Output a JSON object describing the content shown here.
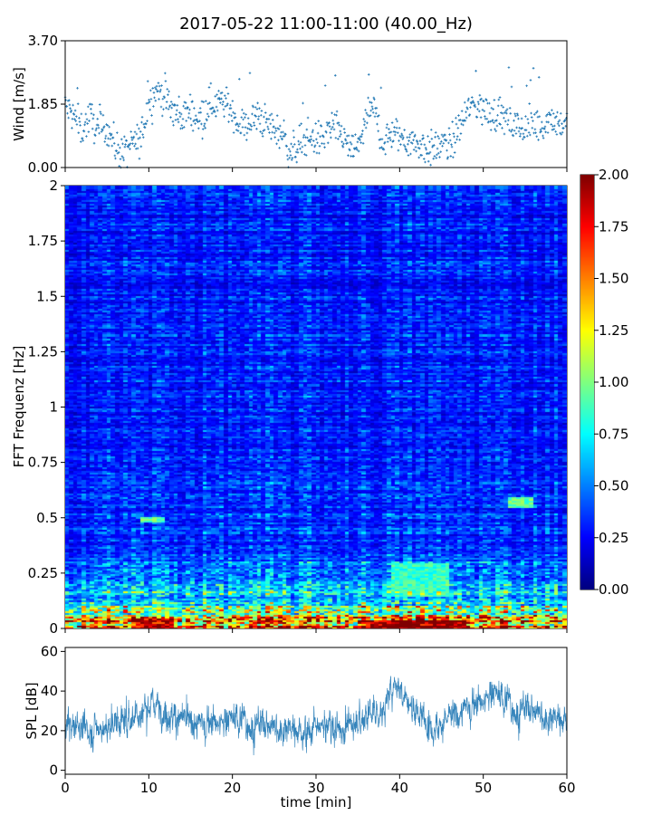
{
  "figure": {
    "title": "2017-05-22 11:00-11:00 (40.00_Hz)"
  },
  "chart_data": [
    {
      "id": "wind",
      "type": "scatter",
      "title": "",
      "xlabel": "",
      "ylabel": "Wind [m/s]",
      "xlim": [
        0,
        60
      ],
      "ylim": [
        0,
        3.7
      ],
      "yticks": [
        0.0,
        1.85,
        3.7
      ],
      "yticklabels": [
        "0.00",
        "1.85",
        "3.70"
      ],
      "xticks": [
        0,
        10,
        20,
        30,
        40,
        50,
        60
      ],
      "color": "#1f77b4",
      "marker": "plus",
      "trend": {
        "x": [
          0,
          1,
          2,
          3,
          4,
          5,
          6,
          7,
          8,
          9,
          10,
          11,
          12,
          13,
          14,
          15,
          16,
          17,
          18,
          19,
          20,
          21,
          22,
          23,
          24,
          25,
          26,
          27,
          28,
          29,
          30,
          31,
          32,
          33,
          34,
          35,
          36,
          37,
          38,
          39,
          40,
          41,
          42,
          43,
          44,
          45,
          46,
          47,
          48,
          49,
          50,
          51,
          52,
          53,
          54,
          55,
          56,
          57,
          58,
          59,
          60
        ],
        "y": [
          1.8,
          1.5,
          1.1,
          1.5,
          1.0,
          1.2,
          0.6,
          0.4,
          0.7,
          0.8,
          1.9,
          2.3,
          2.0,
          1.6,
          1.5,
          1.7,
          1.4,
          1.8,
          1.9,
          1.9,
          1.6,
          1.2,
          1.3,
          1.5,
          1.3,
          1.1,
          1.0,
          0.4,
          0.7,
          0.9,
          0.8,
          0.9,
          1.2,
          1.0,
          0.5,
          0.6,
          1.4,
          1.7,
          0.7,
          1.0,
          0.9,
          0.8,
          0.7,
          0.6,
          0.5,
          0.7,
          0.6,
          1.1,
          1.6,
          1.9,
          1.7,
          1.5,
          1.6,
          1.3,
          1.2,
          1.1,
          1.3,
          1.2,
          1.5,
          1.3,
          1.2
        ]
      }
    },
    {
      "id": "spectrogram",
      "type": "heatmap",
      "title": "",
      "xlabel": "",
      "ylabel": "FFT Frequenz [Hz]",
      "xlim": [
        0,
        60
      ],
      "ylim": [
        0,
        2
      ],
      "yticks": [
        0,
        0.25,
        0.5,
        0.75,
        1,
        1.25,
        1.5,
        1.75,
        2
      ],
      "yticklabels": [
        "0",
        "0.25",
        "0.5",
        "0.75",
        "1",
        "1.25",
        "1.5",
        "1.75",
        "2"
      ],
      "xticks": [
        0,
        10,
        20,
        30,
        40,
        50,
        60
      ],
      "colormap": "jet",
      "vmin": 0,
      "vmax": 2,
      "colorbar": {
        "ticks": [
          0.0,
          0.25,
          0.5,
          0.75,
          1.0,
          1.25,
          1.5,
          1.75,
          2.0
        ],
        "ticklabels": [
          "0.00",
          "0.25",
          "0.50",
          "0.75",
          "1.00",
          "1.25",
          "1.50",
          "1.75",
          "2.00"
        ]
      },
      "profile": {
        "freq": [
          0.0,
          0.02,
          0.05,
          0.08,
          0.12,
          0.18,
          0.25,
          0.35,
          0.5,
          0.75,
          1.0,
          1.5,
          2.0
        ],
        "mean_value": [
          1.9,
          1.7,
          1.3,
          1.0,
          0.75,
          0.6,
          0.5,
          0.4,
          0.35,
          0.33,
          0.32,
          0.3,
          0.3
        ]
      },
      "hotspots": [
        {
          "x": [
            36,
            48
          ],
          "f": [
            0.0,
            0.04
          ],
          "value": 2.0
        },
        {
          "x": [
            9,
            13
          ],
          "f": [
            0.0,
            0.05
          ],
          "value": 1.9
        },
        {
          "x": [
            39,
            46
          ],
          "f": [
            0.15,
            0.3
          ],
          "value": 0.9
        },
        {
          "x": [
            53,
            56
          ],
          "f": [
            0.55,
            0.6
          ],
          "value": 1.0
        },
        {
          "x": [
            9,
            12
          ],
          "f": [
            0.48,
            0.51
          ],
          "value": 1.0
        }
      ]
    },
    {
      "id": "spl",
      "type": "line",
      "title": "",
      "xlabel": "time [min]",
      "ylabel": "SPL [dB]",
      "xlim": [
        0,
        60
      ],
      "ylim": [
        -2,
        62
      ],
      "yticks": [
        0,
        20,
        40,
        60
      ],
      "yticklabels": [
        "0",
        "20",
        "40",
        "60"
      ],
      "xticks": [
        0,
        10,
        20,
        30,
        40,
        50,
        60
      ],
      "xticklabels": [
        "0",
        "10",
        "20",
        "30",
        "40",
        "50",
        "60"
      ],
      "color": "#1f77b4",
      "trend": {
        "x": [
          0,
          2,
          4,
          6,
          8,
          10,
          11,
          12,
          14,
          16,
          18,
          20,
          22,
          24,
          26,
          28,
          30,
          32,
          34,
          36,
          38,
          39,
          40,
          41,
          42,
          44,
          46,
          48,
          50,
          51,
          52,
          54,
          56,
          58,
          60
        ],
        "y": [
          25,
          22,
          20,
          23,
          27,
          32,
          34,
          29,
          25,
          24,
          25,
          26,
          24,
          22,
          23,
          20,
          21,
          23,
          22,
          28,
          30,
          40,
          44,
          35,
          30,
          22,
          27,
          32,
          36,
          40,
          37,
          31,
          30,
          28,
          25
        ]
      },
      "spread_db": 8
    }
  ]
}
